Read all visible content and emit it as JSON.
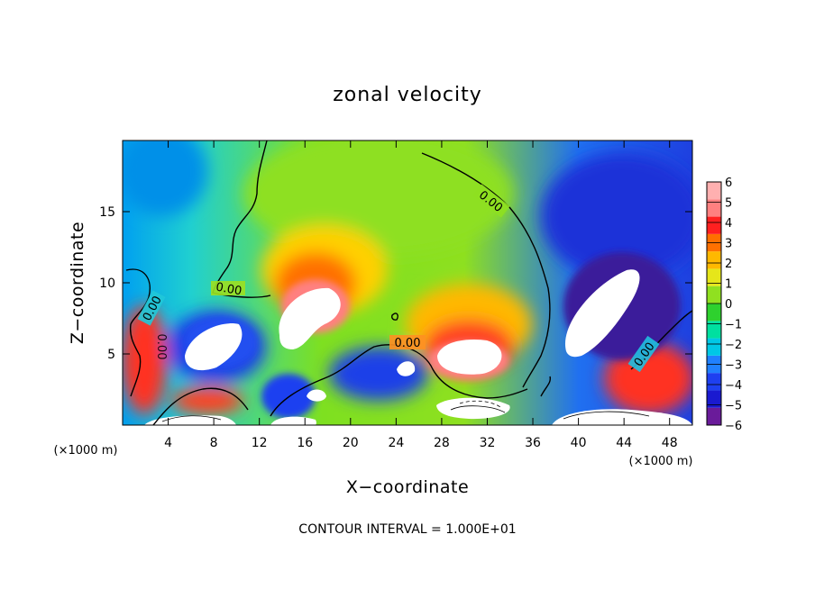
{
  "chart_data": {
    "type": "heatmap",
    "title": "zonal velocity",
    "xlabel": "X−coordinate",
    "ylabel": "Z−coordinate",
    "x_unit_left": "(×1000 m)",
    "x_unit_right": "(×1000 m)",
    "xlim": [
      0,
      50
    ],
    "ylim": [
      0,
      20
    ],
    "x_ticks": [
      4,
      8,
      12,
      16,
      20,
      24,
      28,
      32,
      36,
      40,
      44,
      48
    ],
    "x_tick_labels": [
      "4",
      "8",
      "12",
      "16",
      "20",
      "24",
      "28",
      "32",
      "36",
      "40",
      "44",
      "48"
    ],
    "y_ticks": [
      5,
      10,
      15
    ],
    "y_tick_labels": [
      "5",
      "10",
      "15"
    ],
    "colorbar": {
      "min": -6,
      "max": 6,
      "ticks": [
        6,
        5,
        4,
        3,
        2,
        1,
        0,
        -1,
        -2,
        -3,
        -4,
        -5,
        -6
      ],
      "tick_labels": [
        "6",
        "5",
        "4",
        "3",
        "2",
        "1",
        "0",
        "−1",
        "−2",
        "−3",
        "−4",
        "−5",
        "−6"
      ],
      "colors": [
        "#6a1b9a",
        "#1a1ad0",
        "#1e40f0",
        "#2080ff",
        "#00c8e6",
        "#00e0a0",
        "#2ed12e",
        "#90e020",
        "#e6e61a",
        "#ffb800",
        "#ff7000",
        "#ff2020",
        "#ff8080",
        "#ffb0b0"
      ]
    },
    "contour_labels": [
      "0.00",
      "0.00",
      "0.00",
      "0.00",
      "0.00",
      "0.00"
    ],
    "contour_interval_text": "CONTOUR INTERVAL = 1.000E+01",
    "grid": false
  }
}
